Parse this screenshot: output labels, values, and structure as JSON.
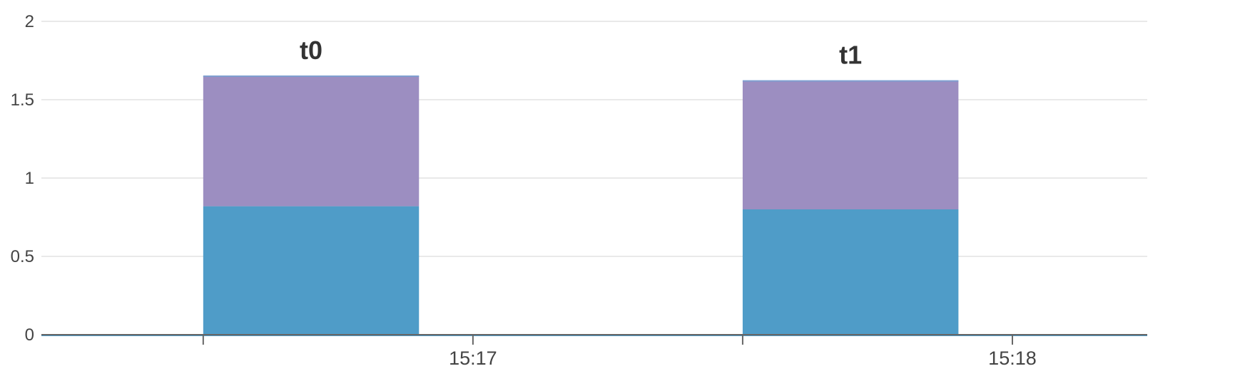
{
  "chart_data": {
    "type": "bar",
    "stacked": true,
    "title": "",
    "xlabel": "",
    "ylabel": "",
    "ylim": [
      0,
      2
    ],
    "yticks": [
      "0",
      "0.5",
      "1",
      "1.5",
      "2"
    ],
    "x_axis": {
      "ticks": [
        {
          "value": "15:16:30",
          "label": ""
        },
        {
          "value": "15:17:00",
          "label": "15:17"
        },
        {
          "value": "15:17:30",
          "label": ""
        },
        {
          "value": "15:18:00",
          "label": "15:18"
        }
      ],
      "range": [
        "15:16:12",
        "15:18:15"
      ]
    },
    "grid": true,
    "legend": "none",
    "categories": [
      "t0",
      "t1"
    ],
    "category_spans": [
      [
        "15:16:30",
        "15:16:54"
      ],
      [
        "15:17:30",
        "15:17:54"
      ]
    ],
    "series": [
      {
        "values": [
          0.82,
          0.8
        ],
        "color": "#4f9cc8"
      },
      {
        "values": [
          0.83,
          0.82
        ],
        "color": "#9c8ec1"
      }
    ]
  }
}
